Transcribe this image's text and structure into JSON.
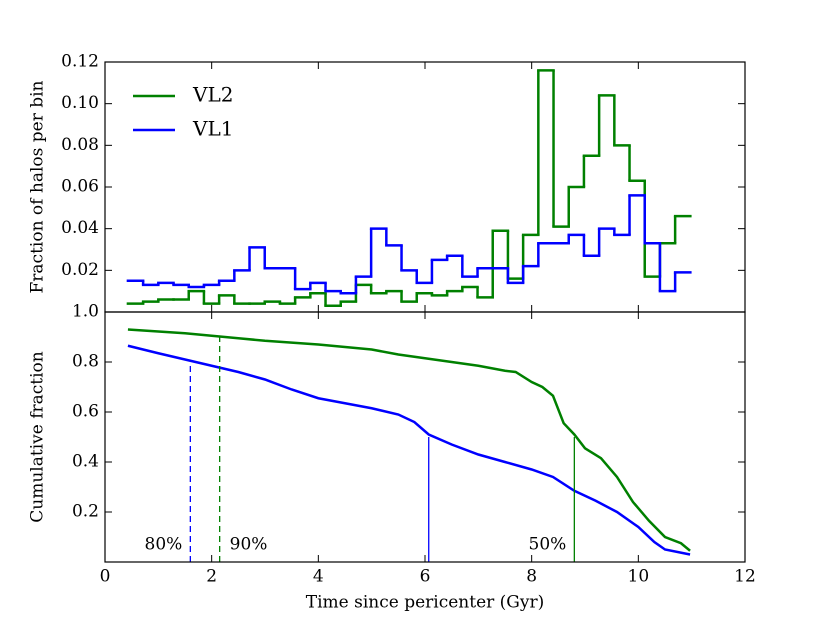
{
  "chart_data": [
    {
      "type": "histogram",
      "ylabel": "Fraction of halos per bin",
      "xlim": [
        0,
        12
      ],
      "xticks": [
        0,
        2,
        4,
        6,
        8,
        10,
        12
      ],
      "ylim": [
        0,
        0.12
      ],
      "yticks": [
        0.02,
        0.04,
        0.06,
        0.08,
        {
          "value": 0.1,
          "label": "0.10"
        },
        0.12
      ],
      "legend": "upper left",
      "bins": [
        0.43,
        0.715,
        1.0,
        1.285,
        1.57,
        1.855,
        2.14,
        2.425,
        2.71,
        2.995,
        3.28,
        3.565,
        3.85,
        4.135,
        4.42,
        4.705,
        4.99,
        5.275,
        5.56,
        5.845,
        6.13,
        6.415,
        6.7,
        6.985,
        7.27,
        7.555,
        7.84,
        8.125,
        8.41,
        8.695,
        8.98,
        9.265,
        9.55,
        9.835,
        10.12,
        10.405,
        10.69,
        10.975
      ],
      "series": [
        {
          "name": "VL2",
          "color": "#008000",
          "values": [
            0.004,
            0.005,
            0.006,
            0.006,
            0.01,
            0.004,
            0.008,
            0.004,
            0.004,
            0.005,
            0.004,
            0.007,
            0.009,
            0.003,
            0.005,
            0.013,
            0.009,
            0.01,
            0.005,
            0.009,
            0.008,
            0.01,
            0.012,
            0.007,
            0.039,
            0.016,
            0.037,
            0.116,
            0.041,
            0.06,
            0.075,
            0.104,
            0.08,
            0.063,
            0.017,
            0.033,
            0.046
          ]
        },
        {
          "name": "VL1",
          "color": "#0000ff",
          "values": [
            0.015,
            0.013,
            0.014,
            0.013,
            0.012,
            0.013,
            0.015,
            0.02,
            0.031,
            0.021,
            0.021,
            0.011,
            0.014,
            0.01,
            0.009,
            0.017,
            0.04,
            0.032,
            0.02,
            0.014,
            0.025,
            0.027,
            0.017,
            0.021,
            0.021,
            0.014,
            0.022,
            0.033,
            0.033,
            0.037,
            0.027,
            0.04,
            0.037,
            0.056,
            0.033,
            0.01,
            0.019
          ]
        }
      ]
    },
    {
      "type": "line",
      "ylabel": "Cumulative fraction",
      "xlabel": "Time since pericenter (Gyr)",
      "xlim": [
        0,
        12
      ],
      "xticks": [
        0,
        2,
        4,
        6,
        8,
        10,
        12
      ],
      "ylim": [
        0,
        1.0
      ],
      "yticks": [
        0.2,
        0.4,
        0.6,
        0.8,
        {
          "value": 1.0,
          "label": "1.0"
        }
      ],
      "series": [
        {
          "name": "VL2",
          "color": "#008000",
          "x": [
            0.43,
            1.5,
            2,
            2.5,
            3,
            4,
            4.5,
            5,
            5.5,
            6,
            6.5,
            7,
            7.5,
            7.7,
            8,
            8.2,
            8.4,
            8.6,
            8.8,
            9,
            9.3,
            9.6,
            9.9,
            10.2,
            10.5,
            10.8,
            10.97
          ],
          "values": [
            0.93,
            0.915,
            0.905,
            0.895,
            0.885,
            0.87,
            0.86,
            0.85,
            0.83,
            0.815,
            0.8,
            0.785,
            0.765,
            0.76,
            0.72,
            0.7,
            0.665,
            0.555,
            0.51,
            0.455,
            0.415,
            0.34,
            0.24,
            0.165,
            0.1,
            0.075,
            0.045
          ]
        },
        {
          "name": "VL1",
          "color": "#0000ff",
          "x": [
            0.43,
            1,
            1.5,
            2,
            2.5,
            3,
            3.5,
            4,
            4.5,
            5,
            5.5,
            5.8,
            6.07,
            6.5,
            7,
            7.5,
            8,
            8.4,
            8.8,
            9.2,
            9.6,
            10,
            10.3,
            10.5,
            10.97
          ],
          "values": [
            0.865,
            0.835,
            0.81,
            0.785,
            0.76,
            0.73,
            0.69,
            0.655,
            0.635,
            0.615,
            0.59,
            0.56,
            0.51,
            0.47,
            0.43,
            0.4,
            0.37,
            0.34,
            0.285,
            0.245,
            0.2,
            0.14,
            0.08,
            0.05,
            0.03
          ]
        }
      ],
      "markers": [
        {
          "x": 1.6,
          "y": 0.8,
          "color": "#0000ff",
          "dashed": true,
          "label": "80%"
        },
        {
          "x": 2.15,
          "y": 0.9,
          "color": "#008000",
          "dashed": true,
          "label": "90%"
        },
        {
          "x": 6.07,
          "y": 0.5,
          "color": "#0000ff",
          "dashed": false
        },
        {
          "x": 8.8,
          "y": 0.5,
          "color": "#008000",
          "dashed": false,
          "label": "50%"
        }
      ]
    }
  ]
}
